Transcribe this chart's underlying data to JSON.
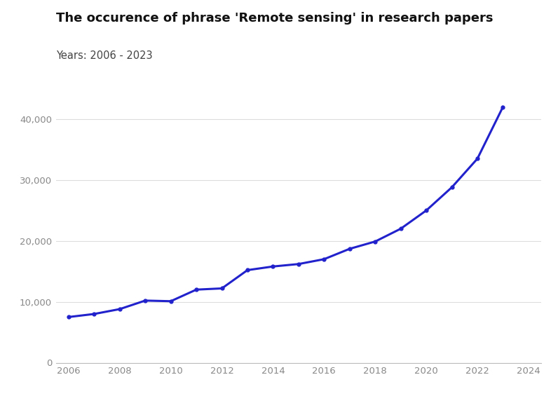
{
  "title": "The occurence of phrase 'Remote sensing' in research papers",
  "subtitle": "Years: 2006 - 2023",
  "years": [
    2006,
    2007,
    2008,
    2009,
    2010,
    2011,
    2012,
    2013,
    2014,
    2015,
    2016,
    2017,
    2018,
    2019,
    2020,
    2021,
    2022,
    2023
  ],
  "values": [
    7500,
    8000,
    8800,
    10200,
    10100,
    12000,
    12200,
    15200,
    15800,
    16200,
    17000,
    18700,
    19900,
    22000,
    25000,
    28800,
    33500,
    42000
  ],
  "line_color": "#2222cc",
  "marker": "o",
  "marker_size": 3.5,
  "linewidth": 2.2,
  "ylim": [
    0,
    45000
  ],
  "xlim": [
    2005.5,
    2024.5
  ],
  "yticks": [
    0,
    10000,
    20000,
    30000,
    40000
  ],
  "xticks": [
    2006,
    2008,
    2010,
    2012,
    2014,
    2016,
    2018,
    2020,
    2022,
    2024
  ],
  "grid_color": "#dddddd",
  "background_color": "#ffffff",
  "title_fontsize": 13,
  "subtitle_fontsize": 10.5,
  "tick_fontsize": 9.5,
  "title_color": "#111111",
  "subtitle_color": "#444444",
  "tick_color": "#888888"
}
